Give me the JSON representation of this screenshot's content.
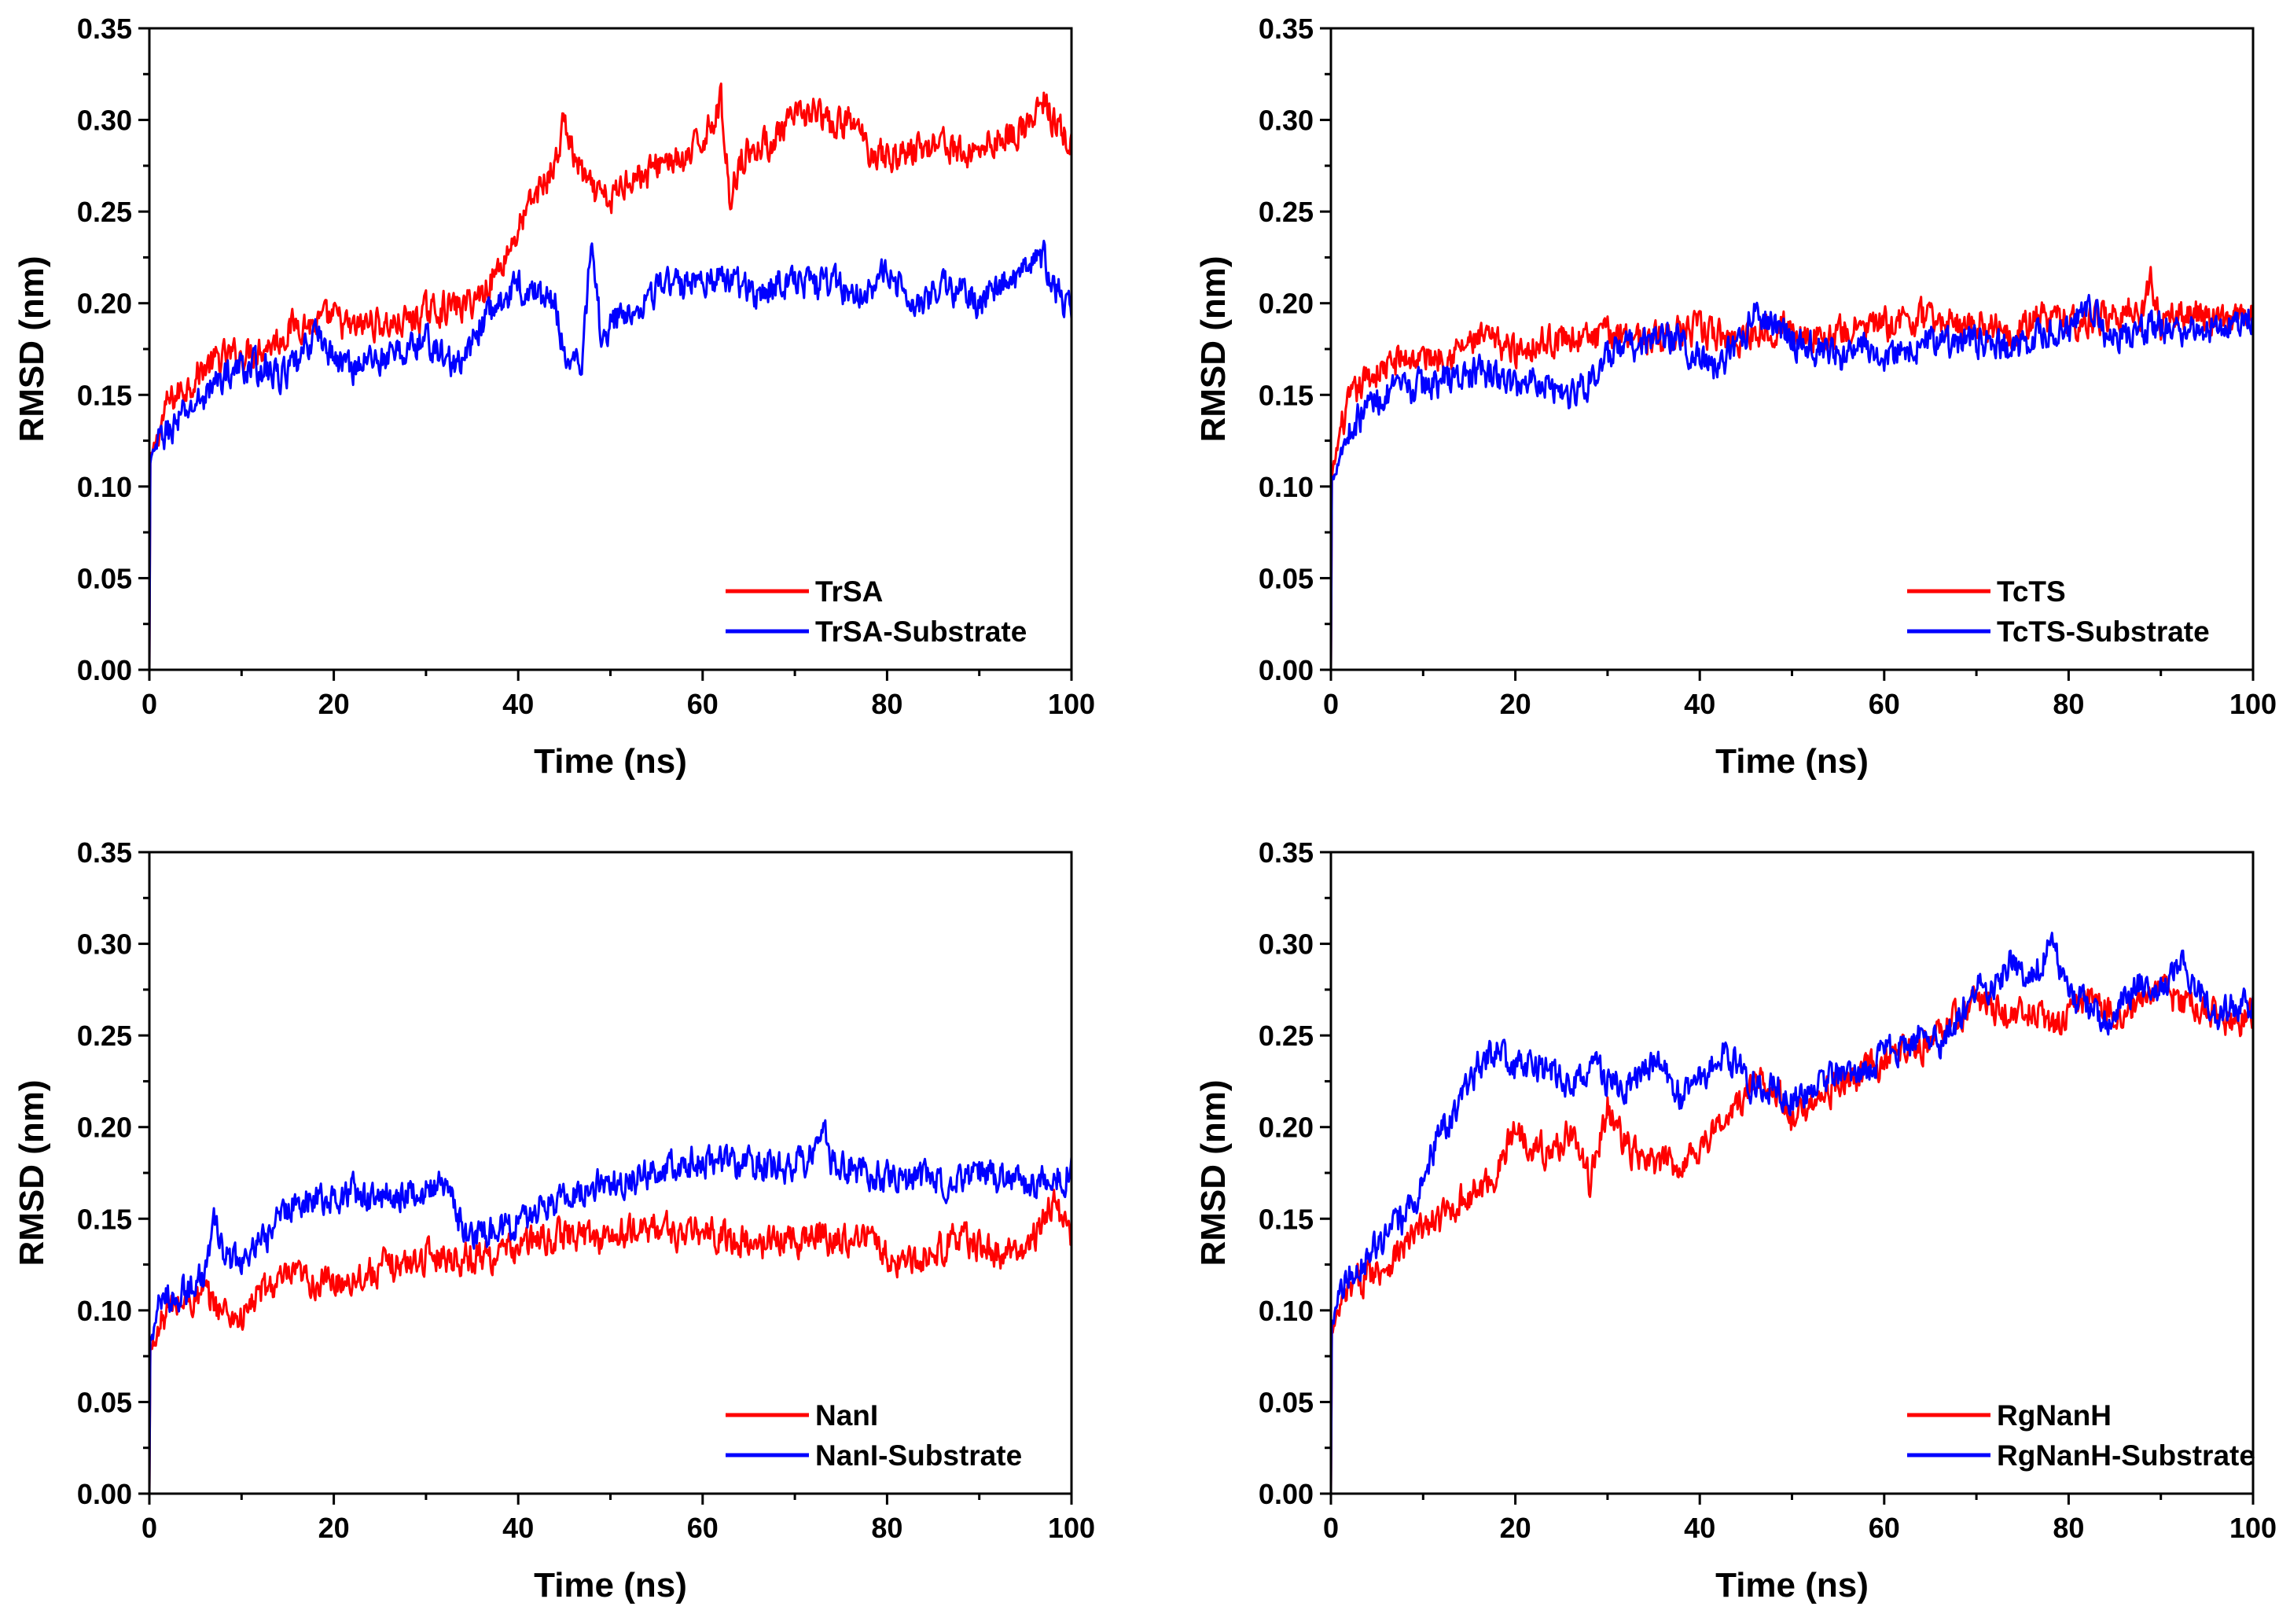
{
  "chart_data": [
    {
      "type": "line",
      "xlabel": "Time (ns)",
      "ylabel": "RMSD (nm)",
      "xlim": [
        0,
        100
      ],
      "ylim": [
        0,
        0.35
      ],
      "xticks": [
        "0",
        "20",
        "40",
        "60",
        "80",
        "100"
      ],
      "yticks": [
        "0.00",
        "0.05",
        "0.10",
        "0.15",
        "0.20",
        "0.25",
        "0.30",
        "0.35"
      ],
      "legend_position": "bottom-right",
      "series": [
        {
          "name": "TrSA",
          "color": "#ff0000",
          "x": [
            0,
            1,
            2,
            4,
            6,
            8,
            10,
            12,
            14,
            16,
            18,
            20,
            22,
            24,
            26,
            28,
            30,
            32,
            34,
            36,
            38,
            40,
            42,
            44,
            45,
            46,
            48,
            50,
            52,
            54,
            56,
            58,
            60,
            62,
            63,
            64,
            66,
            68,
            70,
            72,
            74,
            76,
            78,
            80,
            82,
            84,
            86,
            88,
            90,
            92,
            94,
            96,
            97,
            98,
            100
          ],
          "y": [
            0.11,
            0.13,
            0.145,
            0.155,
            0.165,
            0.17,
            0.172,
            0.176,
            0.18,
            0.19,
            0.188,
            0.192,
            0.185,
            0.19,
            0.188,
            0.19,
            0.195,
            0.198,
            0.198,
            0.205,
            0.22,
            0.24,
            0.26,
            0.275,
            0.3,
            0.28,
            0.26,
            0.255,
            0.27,
            0.27,
            0.28,
            0.275,
            0.29,
            0.31,
            0.255,
            0.28,
            0.285,
            0.29,
            0.3,
            0.305,
            0.295,
            0.3,
            0.285,
            0.28,
            0.282,
            0.285,
            0.29,
            0.28,
            0.285,
            0.29,
            0.293,
            0.3,
            0.31,
            0.3,
            0.285
          ]
        },
        {
          "name": "TrSA-Substrate",
          "color": "#0000ff",
          "x": [
            0,
            1,
            2,
            4,
            6,
            8,
            10,
            12,
            14,
            16,
            18,
            20,
            22,
            24,
            26,
            28,
            30,
            32,
            34,
            36,
            38,
            40,
            42,
            44,
            45,
            46,
            47,
            48,
            49,
            50,
            52,
            54,
            56,
            58,
            60,
            62,
            64,
            66,
            68,
            70,
            72,
            74,
            76,
            78,
            80,
            82,
            84,
            86,
            88,
            90,
            92,
            94,
            96,
            97,
            98,
            100
          ],
          "y": [
            0.11,
            0.125,
            0.13,
            0.14,
            0.15,
            0.16,
            0.165,
            0.165,
            0.16,
            0.165,
            0.185,
            0.17,
            0.165,
            0.17,
            0.17,
            0.175,
            0.18,
            0.17,
            0.165,
            0.19,
            0.2,
            0.21,
            0.205,
            0.2,
            0.175,
            0.165,
            0.17,
            0.24,
            0.18,
            0.19,
            0.195,
            0.205,
            0.21,
            0.21,
            0.215,
            0.213,
            0.21,
            0.205,
            0.21,
            0.215,
            0.21,
            0.212,
            0.205,
            0.21,
            0.215,
            0.205,
            0.2,
            0.21,
            0.205,
            0.2,
            0.21,
            0.215,
            0.22,
            0.225,
            0.21,
            0.195
          ]
        }
      ]
    },
    {
      "type": "line",
      "xlabel": "Time (ns)",
      "ylabel": "RMSD (nm)",
      "xlim": [
        0,
        100
      ],
      "ylim": [
        0,
        0.35
      ],
      "xticks": [
        "0",
        "20",
        "40",
        "60",
        "80",
        "100"
      ],
      "yticks": [
        "0.00",
        "0.05",
        "0.10",
        "0.15",
        "0.20",
        "0.25",
        "0.30",
        "0.35"
      ],
      "legend_position": "bottom-right",
      "series": [
        {
          "name": "TcTS",
          "color": "#ff0000",
          "x": [
            0,
            1,
            2,
            4,
            6,
            8,
            10,
            12,
            14,
            16,
            18,
            20,
            22,
            24,
            26,
            28,
            30,
            32,
            34,
            36,
            38,
            40,
            42,
            44,
            46,
            48,
            50,
            52,
            54,
            56,
            58,
            60,
            62,
            64,
            66,
            68,
            70,
            72,
            74,
            76,
            78,
            80,
            82,
            84,
            86,
            88,
            89,
            90,
            92,
            94,
            96,
            98,
            100
          ],
          "y": [
            0.1,
            0.13,
            0.145,
            0.16,
            0.165,
            0.17,
            0.17,
            0.172,
            0.175,
            0.18,
            0.178,
            0.175,
            0.178,
            0.18,
            0.182,
            0.18,
            0.183,
            0.185,
            0.18,
            0.182,
            0.185,
            0.185,
            0.182,
            0.18,
            0.185,
            0.188,
            0.185,
            0.183,
            0.18,
            0.185,
            0.187,
            0.188,
            0.19,
            0.192,
            0.19,
            0.188,
            0.19,
            0.188,
            0.185,
            0.19,
            0.192,
            0.19,
            0.19,
            0.193,
            0.195,
            0.195,
            0.212,
            0.19,
            0.192,
            0.195,
            0.19,
            0.19,
            0.193
          ]
        },
        {
          "name": "TcTS-Substrate",
          "color": "#0000ff",
          "x": [
            0,
            1,
            2,
            4,
            6,
            8,
            10,
            12,
            14,
            16,
            18,
            20,
            22,
            24,
            26,
            28,
            30,
            32,
            34,
            36,
            38,
            40,
            42,
            44,
            46,
            48,
            50,
            52,
            54,
            56,
            58,
            60,
            62,
            64,
            66,
            68,
            70,
            72,
            74,
            76,
            78,
            80,
            82,
            84,
            86,
            88,
            90,
            92,
            94,
            96,
            98,
            100
          ],
          "y": [
            0.1,
            0.12,
            0.13,
            0.145,
            0.15,
            0.152,
            0.155,
            0.158,
            0.16,
            0.162,
            0.16,
            0.155,
            0.16,
            0.155,
            0.15,
            0.158,
            0.17,
            0.175,
            0.178,
            0.182,
            0.18,
            0.17,
            0.165,
            0.175,
            0.195,
            0.19,
            0.18,
            0.178,
            0.17,
            0.172,
            0.175,
            0.172,
            0.175,
            0.178,
            0.18,
            0.178,
            0.18,
            0.178,
            0.175,
            0.18,
            0.182,
            0.185,
            0.2,
            0.185,
            0.183,
            0.185,
            0.186,
            0.187,
            0.185,
            0.188,
            0.19,
            0.195
          ]
        }
      ]
    },
    {
      "type": "line",
      "xlabel": "Time (ns)",
      "ylabel": "RMSD (nm)",
      "xlim": [
        0,
        100
      ],
      "ylim": [
        0,
        0.35
      ],
      "xticks": [
        "0",
        "20",
        "40",
        "60",
        "80",
        "100"
      ],
      "yticks": [
        "0.00",
        "0.05",
        "0.10",
        "0.15",
        "0.20",
        "0.25",
        "0.30",
        "0.35"
      ],
      "legend_position": "bottom-right",
      "series": [
        {
          "name": "NanI",
          "color": "#ff0000",
          "x": [
            0,
            1,
            2,
            4,
            6,
            8,
            10,
            12,
            14,
            16,
            18,
            20,
            22,
            24,
            26,
            28,
            30,
            32,
            34,
            36,
            38,
            40,
            42,
            44,
            46,
            48,
            50,
            52,
            54,
            56,
            58,
            60,
            62,
            64,
            66,
            68,
            70,
            72,
            74,
            76,
            78,
            80,
            82,
            84,
            86,
            88,
            90,
            92,
            94,
            96,
            98,
            100
          ],
          "y": [
            0.075,
            0.09,
            0.1,
            0.105,
            0.108,
            0.1,
            0.095,
            0.11,
            0.115,
            0.118,
            0.115,
            0.115,
            0.118,
            0.12,
            0.125,
            0.125,
            0.13,
            0.13,
            0.128,
            0.13,
            0.13,
            0.135,
            0.138,
            0.14,
            0.142,
            0.14,
            0.14,
            0.142,
            0.145,
            0.145,
            0.14,
            0.143,
            0.14,
            0.138,
            0.135,
            0.14,
            0.138,
            0.142,
            0.138,
            0.14,
            0.14,
            0.13,
            0.125,
            0.13,
            0.135,
            0.14,
            0.135,
            0.13,
            0.13,
            0.14,
            0.16,
            0.14
          ]
        },
        {
          "name": "NanI-Substrate",
          "color": "#0000ff",
          "x": [
            0,
            1,
            2,
            4,
            6,
            7,
            8,
            10,
            12,
            14,
            16,
            18,
            20,
            22,
            24,
            26,
            28,
            30,
            32,
            34,
            36,
            38,
            40,
            42,
            44,
            46,
            48,
            50,
            52,
            54,
            56,
            58,
            60,
            62,
            64,
            66,
            68,
            70,
            72,
            73,
            74,
            76,
            78,
            80,
            82,
            84,
            86,
            88,
            90,
            92,
            94,
            96,
            98,
            100
          ],
          "y": [
            0.08,
            0.1,
            0.108,
            0.11,
            0.12,
            0.148,
            0.13,
            0.125,
            0.135,
            0.15,
            0.16,
            0.162,
            0.16,
            0.165,
            0.16,
            0.163,
            0.165,
            0.165,
            0.168,
            0.145,
            0.14,
            0.145,
            0.148,
            0.155,
            0.16,
            0.165,
            0.168,
            0.172,
            0.17,
            0.175,
            0.178,
            0.18,
            0.182,
            0.18,
            0.178,
            0.18,
            0.178,
            0.18,
            0.185,
            0.2,
            0.18,
            0.178,
            0.175,
            0.172,
            0.17,
            0.172,
            0.17,
            0.17,
            0.175,
            0.172,
            0.17,
            0.168,
            0.172,
            0.175
          ]
        }
      ]
    },
    {
      "type": "line",
      "xlabel": "Time (ns)",
      "ylabel": "RMSD (nm)",
      "xlim": [
        0,
        100
      ],
      "ylim": [
        0,
        0.35
      ],
      "xticks": [
        "0",
        "20",
        "40",
        "60",
        "80",
        "100"
      ],
      "yticks": [
        "0.00",
        "0.05",
        "0.10",
        "0.15",
        "0.20",
        "0.25",
        "0.30",
        "0.35"
      ],
      "legend_position": "bottom-right",
      "series": [
        {
          "name": "RgNanH",
          "color": "#ff0000",
          "x": [
            0,
            1,
            2,
            4,
            6,
            8,
            10,
            12,
            14,
            16,
            18,
            20,
            22,
            24,
            26,
            28,
            30,
            32,
            34,
            36,
            38,
            40,
            42,
            44,
            46,
            48,
            50,
            52,
            54,
            56,
            58,
            60,
            62,
            64,
            66,
            68,
            70,
            72,
            74,
            76,
            78,
            80,
            82,
            84,
            86,
            88,
            90,
            92,
            94,
            96,
            98,
            100
          ],
          "y": [
            0.085,
            0.1,
            0.11,
            0.12,
            0.125,
            0.135,
            0.145,
            0.15,
            0.16,
            0.165,
            0.175,
            0.2,
            0.19,
            0.185,
            0.2,
            0.17,
            0.21,
            0.19,
            0.18,
            0.18,
            0.18,
            0.19,
            0.2,
            0.21,
            0.225,
            0.225,
            0.2,
            0.215,
            0.22,
            0.225,
            0.23,
            0.235,
            0.24,
            0.245,
            0.25,
            0.26,
            0.27,
            0.265,
            0.26,
            0.265,
            0.255,
            0.26,
            0.27,
            0.265,
            0.26,
            0.27,
            0.275,
            0.27,
            0.265,
            0.262,
            0.258,
            0.26
          ]
        },
        {
          "name": "RgNanH-Substrate",
          "color": "#0000ff",
          "x": [
            0,
            1,
            2,
            4,
            6,
            8,
            10,
            12,
            14,
            16,
            18,
            20,
            22,
            24,
            26,
            28,
            30,
            32,
            34,
            36,
            38,
            40,
            42,
            44,
            46,
            48,
            50,
            52,
            54,
            56,
            58,
            60,
            62,
            64,
            66,
            68,
            70,
            72,
            74,
            76,
            78,
            80,
            82,
            84,
            86,
            88,
            90,
            92,
            94,
            96,
            98,
            100
          ],
          "y": [
            0.09,
            0.115,
            0.12,
            0.13,
            0.14,
            0.15,
            0.17,
            0.2,
            0.21,
            0.235,
            0.24,
            0.23,
            0.235,
            0.23,
            0.22,
            0.235,
            0.225,
            0.22,
            0.23,
            0.235,
            0.215,
            0.225,
            0.24,
            0.235,
            0.22,
            0.225,
            0.215,
            0.22,
            0.23,
            0.225,
            0.23,
            0.24,
            0.245,
            0.25,
            0.245,
            0.26,
            0.275,
            0.28,
            0.29,
            0.28,
            0.3,
            0.275,
            0.265,
            0.26,
            0.27,
            0.28,
            0.275,
            0.29,
            0.275,
            0.26,
            0.265,
            0.265
          ]
        }
      ]
    }
  ]
}
